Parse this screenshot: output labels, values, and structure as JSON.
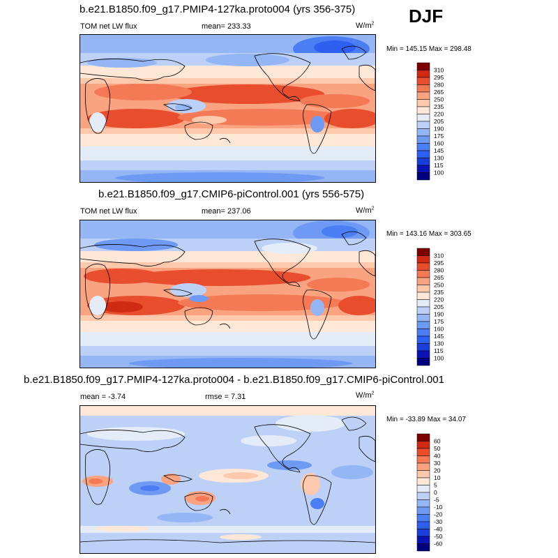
{
  "season": "DJF",
  "panels": [
    {
      "title": "b.e21.B1850.f09_g17.PMIP4-127ka.proto004 (yrs 356-375)",
      "left_label": "TOM net LW flux",
      "center_label": "mean= 233.33",
      "units_base": "W/m",
      "units_exp": "2",
      "minmax": "Min = 145.15 Max = 298.48"
    },
    {
      "title": "b.e21.B1850.f09_g17.CMIP6-piControl.001 (yrs 556-575)",
      "left_label": "TOM net LW flux",
      "center_label": "mean= 237.06",
      "units_base": "W/m",
      "units_exp": "2",
      "minmax": "Min = 143.16 Max = 303.65"
    },
    {
      "title": "b.e21.B1850.f09_g17.PMIP4-127ka.proto004 - b.e21.B1850.f09_g17.CMIP6-piControl.001",
      "left_label": "mean =  -3.74",
      "center_label": "rmse =  7.31",
      "units_base": "W/m",
      "units_exp": "2",
      "minmax": "Min = -33.89 Max =  34.07"
    }
  ],
  "chart_data": [
    {
      "type": "heatmap",
      "title": "b.e21.B1850.f09_g17.PMIP4-127ka.proto004 (yrs 356-375)",
      "variable": "TOM net LW flux",
      "units": "W/m2",
      "season": "DJF",
      "mean": 233.33,
      "min": 145.15,
      "max": 298.48,
      "colorbar_levels": [
        100,
        115,
        130,
        145,
        160,
        175,
        190,
        205,
        220,
        235,
        250,
        265,
        280,
        295,
        310
      ],
      "colorbar_colors": [
        "#00007d",
        "#0a14b4",
        "#1a3ed9",
        "#2d5ff0",
        "#4a7ef2",
        "#6f9af3",
        "#95b6f5",
        "#bdd1f7",
        "#e4ecf7",
        "#fde7d7",
        "#fcc9ad",
        "#f9a380",
        "#f37a55",
        "#e84e2e",
        "#cf2a14",
        "#7d0000"
      ]
    },
    {
      "type": "heatmap",
      "title": "b.e21.B1850.f09_g17.CMIP6-piControl.001 (yrs 556-575)",
      "variable": "TOM net LW flux",
      "units": "W/m2",
      "season": "DJF",
      "mean": 237.06,
      "min": 143.16,
      "max": 303.65,
      "colorbar_levels": [
        100,
        115,
        130,
        145,
        160,
        175,
        190,
        205,
        220,
        235,
        250,
        265,
        280,
        295,
        310
      ],
      "colorbar_colors": [
        "#00007d",
        "#0a14b4",
        "#1a3ed9",
        "#2d5ff0",
        "#4a7ef2",
        "#6f9af3",
        "#95b6f5",
        "#bdd1f7",
        "#e4ecf7",
        "#fde7d7",
        "#fcc9ad",
        "#f9a380",
        "#f37a55",
        "#e84e2e",
        "#cf2a14",
        "#7d0000"
      ]
    },
    {
      "type": "heatmap",
      "title": "b.e21.B1850.f09_g17.PMIP4-127ka.proto004 - b.e21.B1850.f09_g17.CMIP6-piControl.001",
      "units": "W/m2",
      "season": "DJF",
      "mean": -3.74,
      "rmse": 7.31,
      "min": -33.89,
      "max": 34.07,
      "colorbar_levels": [
        -60,
        -50,
        -40,
        -30,
        -20,
        -10,
        -5,
        0,
        5,
        10,
        20,
        30,
        40,
        50,
        60
      ],
      "colorbar_colors": [
        "#00007d",
        "#0a14b4",
        "#1a3ed9",
        "#2d5ff0",
        "#4a7ef2",
        "#6f9af3",
        "#95b6f5",
        "#bdd1f7",
        "#e4ecf7",
        "#fde7d7",
        "#fcc9ad",
        "#f9a380",
        "#f37a55",
        "#e84e2e",
        "#cf2a14",
        "#7d0000"
      ]
    }
  ]
}
